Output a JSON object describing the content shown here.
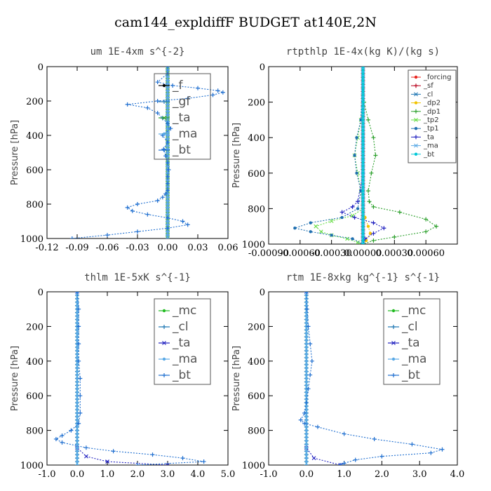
{
  "title": "cam144_expldiffF  BUDGET at140E,2N",
  "colors": {
    "forcing": "#e8241f",
    "sf": "#b8001a",
    "cl": "#1f77b4",
    "dp2": "#f2c300",
    "dp1": "#2ca02c",
    "tp2": "#66dd44",
    "tp1": "#1f6fb0",
    "ta": "#2020c0",
    "ma": "#5aa9e6",
    "bt": "#00c8d8",
    "mc": "#22bb22",
    "f": "#000000",
    "gf": "#1f77b4",
    "main": "#1f6fd0"
  },
  "chart_data": [
    {
      "type": "line",
      "title": "um   1E-4xm s^{-2}",
      "ylabel": "Pressure [hPa]",
      "xlim": [
        -0.12,
        0.06
      ],
      "ylim": [
        1000,
        0
      ],
      "xticks": [
        "-0.12",
        "-0.09",
        "-0.06",
        "-0.03",
        "0.00",
        "0.03",
        "0.06"
      ],
      "xtick_values": [
        -0.12,
        -0.09,
        -0.06,
        -0.03,
        0.0,
        0.03,
        0.06
      ],
      "yticks": [
        "0",
        "200",
        "400",
        "600",
        "800",
        "1000"
      ],
      "ytick_values": [
        0,
        200,
        400,
        600,
        800,
        1000
      ],
      "legend_style": "big",
      "legend": [
        "_f",
        "_gf",
        "_ta",
        "_ma",
        "_bt"
      ],
      "series": [
        {
          "name": "_f",
          "color": "f",
          "p": [
            0,
            100,
            200,
            300,
            400,
            500,
            600,
            700,
            800,
            900,
            1000
          ],
          "x": [
            0,
            0,
            0,
            0,
            0,
            0,
            0,
            0,
            0,
            0,
            0
          ]
        },
        {
          "name": "_gf",
          "color": "gf",
          "p": [
            0,
            100,
            200,
            300,
            400,
            500,
            600,
            700,
            800,
            900,
            1000
          ],
          "x": [
            0,
            0,
            0,
            0,
            0,
            0,
            0,
            0,
            0,
            0,
            0
          ]
        },
        {
          "name": "_ta",
          "color": "dp1",
          "p": [
            0,
            100,
            200,
            300,
            400,
            500,
            600,
            700,
            800,
            900,
            1000
          ],
          "x": [
            0,
            0,
            0,
            0,
            0,
            0,
            0,
            0,
            0,
            0,
            0
          ]
        },
        {
          "name": "_ma",
          "color": "ma",
          "p": [
            0,
            100,
            200,
            300,
            400,
            500,
            600,
            700,
            800,
            900,
            1000
          ],
          "x": [
            0,
            0,
            0,
            0,
            0,
            0,
            0,
            0,
            0,
            0,
            0
          ]
        },
        {
          "name": "_bt",
          "color": "main",
          "p": [
            0,
            40,
            90,
            110,
            125,
            140,
            150,
            165,
            185,
            200,
            220,
            240,
            270,
            300,
            330,
            360,
            400,
            440,
            480,
            520,
            560,
            600,
            640,
            680,
            720,
            740,
            760,
            780,
            800,
            820,
            840,
            860,
            880,
            900,
            920,
            940,
            960,
            980,
            1000
          ],
          "x": [
            0,
            0,
            -0.01,
            0.005,
            0.03,
            0.05,
            0.055,
            0.045,
            0.02,
            -0.01,
            -0.04,
            -0.02,
            -0.01,
            -0.005,
            0.0,
            0.003,
            -0.005,
            0.0,
            -0.004,
            -0.002,
            0.0,
            0.001,
            0.0,
            0.0,
            0.0,
            -0.002,
            -0.005,
            -0.01,
            -0.03,
            -0.04,
            -0.035,
            -0.02,
            0.0,
            0.015,
            0.02,
            0.0,
            -0.03,
            -0.06,
            -0.095
          ]
        }
      ]
    },
    {
      "type": "line",
      "title": "rtpthlp   1E-4x(kg K)/(kg s)",
      "ylabel": "Pressure [hPa]",
      "xlim": [
        -0.0009,
        0.0009
      ],
      "ylim": [
        1000,
        0
      ],
      "xticks": [
        "-0.00090",
        "-0.00060",
        "-0.00030",
        "0.00000",
        "0.00030",
        "0.00060"
      ],
      "xtick_values": [
        -0.0009,
        -0.0006,
        -0.0003,
        0.0,
        0.0003,
        0.0006
      ],
      "yticks": [
        "0",
        "200",
        "400",
        "600",
        "800",
        "1000"
      ],
      "ytick_values": [
        0,
        200,
        400,
        600,
        800,
        1000
      ],
      "legend_style": "small",
      "legend": [
        "_forcing",
        "_sf",
        "_cl",
        "_dp2",
        "_dp1",
        "_tp2",
        "_tp1",
        "_ta",
        "_ma",
        "_bt"
      ],
      "series": [
        {
          "name": "_forcing",
          "color": "forcing",
          "p": [
            0,
            100,
            200,
            300,
            400,
            500,
            600,
            700,
            800,
            900,
            1000
          ],
          "x": [
            0,
            0,
            0,
            0,
            0,
            0,
            0,
            0,
            0,
            0,
            0
          ]
        },
        {
          "name": "_sf",
          "color": "sf",
          "p": [
            0,
            100,
            200,
            300,
            400,
            500,
            600,
            700,
            800,
            900,
            1000
          ],
          "x": [
            0,
            0,
            0,
            0,
            0,
            0,
            0,
            0,
            0,
            0,
            0
          ]
        },
        {
          "name": "_cl",
          "color": "cl",
          "p": [
            0,
            200,
            400,
            600,
            800,
            1000
          ],
          "x": [
            0,
            0,
            0,
            0,
            0,
            0
          ]
        },
        {
          "name": "_dp2",
          "color": "dp2",
          "p": [
            0,
            800,
            850,
            900,
            940,
            980,
            1000
          ],
          "x": [
            0,
            0,
            2e-05,
            5e-05,
            7e-05,
            3e-05,
            0
          ]
        },
        {
          "name": "_dp1",
          "color": "dp1",
          "p": [
            0,
            200,
            300,
            400,
            500,
            600,
            700,
            760,
            790,
            820,
            860,
            900,
            930,
            960,
            980,
            1000
          ],
          "x": [
            0,
            1e-05,
            5e-05,
            0.0001,
            0.00012,
            8e-05,
            5e-05,
            6e-05,
            0.0001,
            0.00035,
            0.0006,
            0.0007,
            0.0006,
            0.0003,
            0.0001,
            0
          ]
        },
        {
          "name": "_tp2",
          "color": "tp2",
          "p": [
            0,
            300,
            400,
            500,
            600,
            700,
            800,
            840,
            870,
            900,
            930,
            950,
            970,
            990,
            1000
          ],
          "x": [
            0,
            -2e-05,
            -5e-05,
            -8e-05,
            -5e-05,
            -2e-05,
            0.0,
            -0.0001,
            -0.0003,
            -0.00045,
            -0.0004,
            -0.0003,
            -0.00015,
            -5e-05,
            0
          ]
        },
        {
          "name": "_tp1",
          "color": "tp1",
          "p": [
            0,
            300,
            400,
            500,
            600,
            700,
            800,
            850,
            880,
            910,
            930,
            950,
            970,
            1000
          ],
          "x": [
            0,
            -2e-05,
            -6e-05,
            -8e-05,
            -6e-05,
            -2e-05,
            -5e-05,
            -0.0002,
            -0.0005,
            -0.00065,
            -0.0005,
            -0.0003,
            -0.0001,
            0
          ]
        },
        {
          "name": "_ta",
          "color": "ta",
          "p": [
            0,
            600,
            760,
            790,
            820,
            850,
            880,
            910,
            940,
            970,
            1000
          ],
          "x": [
            0,
            0,
            -5e-05,
            -0.0001,
            -0.0002,
            -8e-05,
            0.0001,
            0.0002,
            0.0001,
            2e-05,
            0
          ]
        },
        {
          "name": "_ma",
          "color": "ma",
          "p": [
            0,
            200,
            400,
            600,
            800,
            1000
          ],
          "x": [
            0,
            0,
            0,
            0,
            0,
            0
          ]
        },
        {
          "name": "_bt",
          "color": "bt",
          "p": [
            0,
            200,
            400,
            600,
            800,
            1000
          ],
          "x": [
            0,
            0,
            0,
            0,
            0,
            0
          ]
        }
      ]
    },
    {
      "type": "line",
      "title": "thlm   1E-5xK s^{-1}",
      "ylabel": "Pressure [hPa]",
      "xlim": [
        -1.0,
        5.0
      ],
      "ylim": [
        1000,
        0
      ],
      "xticks": [
        "-1.0",
        "0.0",
        "1.0",
        "2.0",
        "3.0",
        "4.0",
        "5.0"
      ],
      "xtick_values": [
        -1,
        0,
        1,
        2,
        3,
        4,
        5
      ],
      "yticks": [
        "0",
        "200",
        "400",
        "600",
        "800",
        "1000"
      ],
      "ytick_values": [
        0,
        200,
        400,
        600,
        800,
        1000
      ],
      "legend_style": "big",
      "legend": [
        "_mc",
        "_cl",
        "_ta",
        "_ma",
        "_bt"
      ],
      "series": [
        {
          "name": "_mc",
          "color": "mc",
          "p": [
            0,
            100,
            200,
            300,
            400,
            500,
            600,
            700,
            800,
            900,
            1000
          ],
          "x": [
            0,
            0,
            0,
            0,
            0,
            0,
            0,
            0,
            0,
            0,
            0
          ]
        },
        {
          "name": "_cl",
          "color": "cl",
          "p": [
            0,
            200,
            400,
            600,
            800,
            1000
          ],
          "x": [
            0,
            0,
            0,
            0,
            0,
            0
          ]
        },
        {
          "name": "_ta",
          "color": "ta",
          "p": [
            0,
            900,
            950,
            980,
            1000
          ],
          "x": [
            0,
            0,
            0.3,
            1.0,
            3.0
          ]
        },
        {
          "name": "_ma",
          "color": "ma",
          "p": [
            0,
            200,
            400,
            600,
            800,
            1000
          ],
          "x": [
            0,
            0,
            0,
            0,
            0,
            0
          ]
        },
        {
          "name": "_bt",
          "color": "main",
          "p": [
            0,
            100,
            200,
            300,
            400,
            500,
            600,
            700,
            760,
            800,
            830,
            850,
            870,
            900,
            920,
            940,
            960,
            980,
            1000
          ],
          "x": [
            0.0,
            0.05,
            0.05,
            0.05,
            0.05,
            0.1,
            0.1,
            0.1,
            0.05,
            -0.2,
            -0.5,
            -0.7,
            -0.5,
            0.3,
            1.2,
            2.5,
            3.5,
            4.2,
            2.0
          ]
        }
      ]
    },
    {
      "type": "line",
      "title": "rtm   1E-8xkg kg^{-1} s^{-1}",
      "ylabel": "Pressure [hPa]",
      "xlim": [
        -1.0,
        4.0
      ],
      "ylim": [
        1000,
        0
      ],
      "xticks": [
        "-1.0",
        "0.0",
        "1.0",
        "2.0",
        "3.0",
        "4.0"
      ],
      "xtick_values": [
        -1,
        0,
        1,
        2,
        3,
        4
      ],
      "yticks": [
        "0",
        "200",
        "400",
        "600",
        "800",
        "1000"
      ],
      "ytick_values": [
        0,
        200,
        400,
        600,
        800,
        1000
      ],
      "legend_style": "big",
      "legend": [
        "_mc",
        "_cl",
        "_ta",
        "_ma",
        "_bt"
      ],
      "series": [
        {
          "name": "_mc",
          "color": "mc",
          "p": [
            0,
            100,
            200,
            300,
            400,
            500,
            600,
            700,
            800,
            900,
            1000
          ],
          "x": [
            0,
            0,
            0,
            0,
            0,
            0,
            0,
            0,
            0,
            0,
            0
          ]
        },
        {
          "name": "_cl",
          "color": "cl",
          "p": [
            0,
            200,
            400,
            600,
            800,
            1000
          ],
          "x": [
            0,
            0,
            0,
            0,
            0,
            0
          ]
        },
        {
          "name": "_ta",
          "color": "ta",
          "p": [
            0,
            900,
            960,
            1000
          ],
          "x": [
            0,
            0,
            0.2,
            0.9
          ]
        },
        {
          "name": "_ma",
          "color": "ma",
          "p": [
            0,
            200,
            400,
            600,
            800,
            1000
          ],
          "x": [
            0,
            0,
            0,
            0,
            0,
            0
          ]
        },
        {
          "name": "_bt",
          "color": "main",
          "p": [
            0,
            100,
            200,
            300,
            400,
            480,
            560,
            640,
            700,
            740,
            760,
            780,
            820,
            850,
            880,
            910,
            930,
            950,
            970,
            990,
            1000
          ],
          "x": [
            0.0,
            0.02,
            0.05,
            0.1,
            0.15,
            0.1,
            0.05,
            0.0,
            -0.05,
            -0.15,
            -0.05,
            0.3,
            1.0,
            1.8,
            2.8,
            3.6,
            3.3,
            2.0,
            1.3,
            1.0,
            0.9
          ]
        }
      ]
    }
  ]
}
